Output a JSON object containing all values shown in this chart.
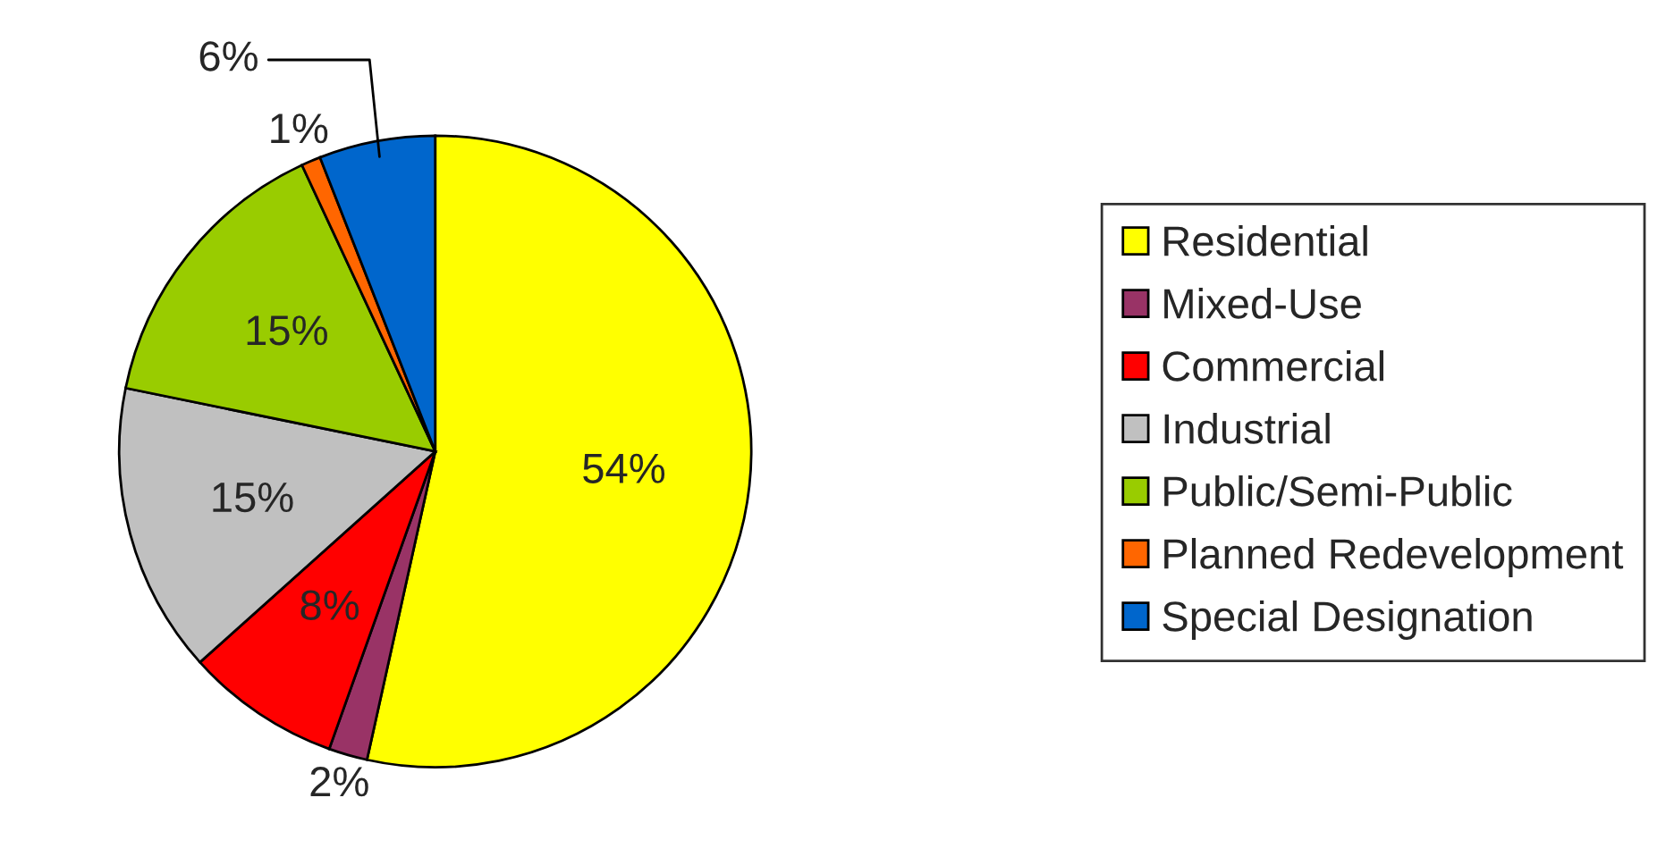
{
  "chart_data": {
    "type": "pie",
    "categories": [
      "Residential",
      "Mixed-Use",
      "Commercial",
      "Industrial",
      "Public/Semi-Public",
      "Planned Redevelopment",
      "Special Designation"
    ],
    "values": [
      54,
      2,
      8,
      15,
      15,
      1,
      6
    ],
    "colors": [
      "#ffff00",
      "#993366",
      "#ff0000",
      "#c0c0c0",
      "#99cc00",
      "#ff6600",
      "#0066cc"
    ],
    "value_labels": [
      "54%",
      "2%",
      "8%",
      "15%",
      "15%",
      "1%",
      "6%"
    ],
    "legend": "right"
  }
}
